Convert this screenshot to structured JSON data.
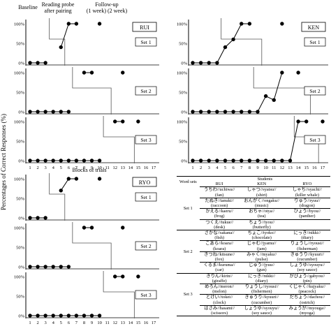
{
  "figure": {
    "y_axis_label": "Percentages of Correct Responses (%)",
    "x_axis_label": "Blocks of trials",
    "phase_labels": [
      "Baseline",
      "Reading probe after pairing",
      "Follow-up (1 week) (2 week)"
    ],
    "x_ticks": [
      1,
      2,
      3,
      4,
      5,
      6,
      7,
      8,
      9,
      10,
      11,
      12,
      13,
      14,
      15,
      16,
      17
    ],
    "y_ticks": [
      "0%",
      "50%",
      "100%"
    ]
  },
  "chart_data": [
    {
      "type": "scatter",
      "student": "RUI",
      "xlabel": "Blocks of trials",
      "ylabel": "Percentages of Correct Responses (%)",
      "ylim": [
        0,
        100
      ],
      "xlim": [
        1,
        17
      ],
      "sets": [
        {
          "name": "Set 1",
          "points": [
            [
              1,
              0
            ],
            [
              2,
              0
            ],
            [
              3,
              0
            ],
            [
              5,
              40
            ],
            [
              6,
              100
            ],
            [
              7,
              100
            ],
            [
              10,
              100
            ]
          ]
        },
        {
          "name": "Set 2",
          "points": [
            [
              1,
              0
            ],
            [
              2,
              0
            ],
            [
              3,
              0
            ],
            [
              4,
              0
            ],
            [
              5,
              0
            ],
            [
              6,
              0
            ],
            [
              8,
              100
            ],
            [
              9,
              100
            ],
            [
              13,
              100
            ]
          ]
        },
        {
          "name": "Set 3",
          "points": [
            [
              1,
              0
            ],
            [
              2,
              0
            ],
            [
              3,
              0
            ],
            [
              4,
              0
            ],
            [
              5,
              0
            ],
            [
              6,
              0
            ],
            [
              7,
              0
            ],
            [
              8,
              0
            ],
            [
              9,
              0
            ],
            [
              10,
              0
            ],
            [
              12,
              100
            ],
            [
              13,
              100
            ],
            [
              15,
              100
            ]
          ]
        }
      ]
    },
    {
      "type": "scatter",
      "student": "KEN",
      "xlabel": "Blocks of trials",
      "ylabel": "Percentages of Correct Responses (%)",
      "ylim": [
        0,
        100
      ],
      "xlim": [
        1,
        17
      ],
      "sets": [
        {
          "name": "Set 1",
          "points": [
            [
              1,
              0
            ],
            [
              2,
              0
            ],
            [
              3,
              0
            ],
            [
              4,
              0
            ],
            [
              5,
              40
            ],
            [
              6,
              60
            ],
            [
              7,
              100
            ],
            [
              8,
              100
            ],
            [
              12,
              100
            ]
          ]
        },
        {
          "name": "Set 2",
          "points": [
            [
              1,
              0
            ],
            [
              2,
              0
            ],
            [
              3,
              0
            ],
            [
              4,
              0
            ],
            [
              5,
              0
            ],
            [
              6,
              0
            ],
            [
              7,
              0
            ],
            [
              8,
              0
            ],
            [
              9,
              0
            ],
            [
              10,
              40
            ],
            [
              11,
              30
            ],
            [
              12,
              100
            ],
            [
              14,
              100
            ]
          ]
        },
        {
          "name": "Set 3",
          "points": [
            [
              1,
              0
            ],
            [
              2,
              0
            ],
            [
              3,
              0
            ],
            [
              4,
              0
            ],
            [
              5,
              0
            ],
            [
              6,
              0
            ],
            [
              7,
              0
            ],
            [
              8,
              0
            ],
            [
              9,
              0
            ],
            [
              10,
              0
            ],
            [
              11,
              0
            ],
            [
              12,
              0
            ],
            [
              13,
              0
            ],
            [
              14,
              100
            ],
            [
              15,
              100
            ],
            [
              17,
              100
            ]
          ]
        }
      ]
    },
    {
      "type": "scatter",
      "student": "RYO",
      "xlabel": "Blocks of trials",
      "ylabel": "Percentages of Correct Responses (%)",
      "ylim": [
        0,
        100
      ],
      "xlim": [
        1,
        17
      ],
      "sets": [
        {
          "name": "Set 1",
          "points": [
            [
              1,
              0
            ],
            [
              2,
              0
            ],
            [
              3,
              0
            ],
            [
              5,
              70
            ],
            [
              6,
              100
            ],
            [
              7,
              100
            ],
            [
              10,
              100
            ]
          ]
        },
        {
          "name": "Set 2",
          "points": [
            [
              1,
              0
            ],
            [
              2,
              0
            ],
            [
              3,
              0
            ],
            [
              4,
              0
            ],
            [
              5,
              0
            ],
            [
              6,
              0
            ],
            [
              8,
              100
            ],
            [
              9,
              100
            ],
            [
              13,
              100
            ]
          ]
        },
        {
          "name": "Set 3",
          "points": [
            [
              1,
              0
            ],
            [
              2,
              0
            ],
            [
              3,
              0
            ],
            [
              4,
              0
            ],
            [
              5,
              0
            ],
            [
              6,
              0
            ],
            [
              7,
              0
            ],
            [
              8,
              0
            ],
            [
              9,
              0
            ],
            [
              10,
              0
            ],
            [
              12,
              100
            ],
            [
              13,
              100
            ],
            [
              15,
              100
            ]
          ]
        }
      ]
    }
  ],
  "word_table": {
    "header_left": "Word sets",
    "header_top": "Students",
    "students": [
      "RUI",
      "KEN",
      "RYO"
    ],
    "sets": [
      {
        "label": "Set 1",
        "words": [
          [
            "うちわ//uchiwa// (fan)",
            "しゃつ//syatsu// (shirt)",
            "しゃち//syachi// (killer whale)"
          ],
          [
            "たぬき//tanuki// (raccoon)",
            "おんがく//ongaku// (music)",
            "りゅう//ryuu// (dragon)"
          ],
          [
            "かえる//kaeru// (frog)",
            "おちゃ//otya// (tea)",
            "ひょう//hyou// (panther)"
          ],
          [
            "つくえ//tukue// (desk)",
            "ちょう//tyou// (butterfly)",
            ""
          ]
        ]
      },
      {
        "label": "Set 2",
        "words": [
          [
            "さかな//sakana// (fish)",
            "ちょこ//tyoko// (chocolate)",
            "にっき//nikki// (diary)"
          ],
          [
            "こあら//koara// (koara)",
            "じゃむ//jyamu// (jam)",
            "りょうし//ryousi// (fisherman)"
          ],
          [
            "きつね//kitsune// (fox)",
            "みゃく//myaku// (pulse)",
            "きゅうり//kyuuri// (cucumber)"
          ],
          [
            "くるま//kuruma// (car)",
            "じゅう//jyuu// (gun)",
            "しょうゆ//syouyu// (soy sauce)"
          ]
        ]
      },
      {
        "label": "Set 3",
        "words": [
          [
            "きりん//kirin// (giraffe)",
            "にっき//nikki// (diary)",
            "がびょう//gabyou// (pin)"
          ],
          [
            "めろん//meron// (melon)",
            "りょうし//ryousi// (fishermen)",
            "くじゃく//kujyaku// (peacock)"
          ],
          [
            "とけい//tokei// (clock)",
            "きゅうり//kyuuri// (cucumber)",
            "だちょう//dachou// (ostrich)"
          ],
          [
            "はさみ//hasami// (scissors)",
            "しょうゆ//syouyu// (soy sauce)",
            "みょうが//myouga// (myoga)"
          ]
        ]
      }
    ]
  }
}
